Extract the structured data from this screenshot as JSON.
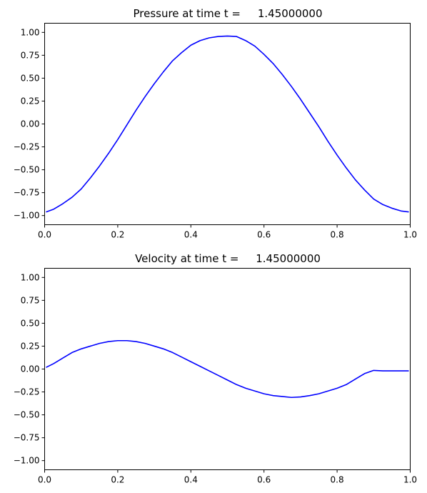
{
  "chart_data": [
    {
      "type": "line",
      "title": "Pressure at time t =     1.45000000",
      "xlabel": "",
      "ylabel": "",
      "xlim": [
        0.0,
        1.0
      ],
      "ylim": [
        -1.1,
        1.1
      ],
      "xticks": [
        0.0,
        0.2,
        0.4,
        0.6,
        0.8,
        1.0
      ],
      "xtick_labels": [
        "0.0",
        "0.2",
        "0.4",
        "0.6",
        "0.8",
        "1.0"
      ],
      "yticks": [
        1.0,
        0.75,
        0.5,
        0.25,
        0.0,
        -0.25,
        -0.5,
        -0.75,
        -1.0
      ],
      "ytick_labels": [
        "1.00",
        "0.75",
        "0.50",
        "0.25",
        "0.00",
        "−0.25",
        "−0.50",
        "−0.75",
        "−1.00"
      ],
      "grid": false,
      "color": "#0000ff",
      "series": [
        {
          "x": [
            0.005,
            0.025,
            0.05,
            0.075,
            0.1,
            0.125,
            0.15,
            0.175,
            0.2,
            0.225,
            0.25,
            0.275,
            0.3,
            0.325,
            0.35,
            0.375,
            0.4,
            0.425,
            0.45,
            0.475,
            0.5,
            0.525,
            0.55,
            0.575,
            0.6,
            0.625,
            0.65,
            0.675,
            0.7,
            0.725,
            0.75,
            0.775,
            0.8,
            0.825,
            0.85,
            0.875,
            0.9,
            0.925,
            0.95,
            0.975,
            0.995
          ],
          "values": [
            -0.96,
            -0.93,
            -0.87,
            -0.8,
            -0.71,
            -0.59,
            -0.46,
            -0.32,
            -0.17,
            -0.01,
            0.15,
            0.3,
            0.44,
            0.57,
            0.69,
            0.78,
            0.86,
            0.91,
            0.94,
            0.955,
            0.96,
            0.955,
            0.91,
            0.85,
            0.76,
            0.66,
            0.54,
            0.41,
            0.27,
            0.12,
            -0.03,
            -0.19,
            -0.34,
            -0.48,
            -0.61,
            -0.72,
            -0.82,
            -0.88,
            -0.92,
            -0.95,
            -0.96
          ]
        }
      ]
    },
    {
      "type": "line",
      "title": "Velocity at time t =     1.45000000",
      "xlabel": "",
      "ylabel": "",
      "xlim": [
        0.0,
        1.0
      ],
      "ylim": [
        -1.1,
        1.1
      ],
      "xticks": [
        0.0,
        0.2,
        0.4,
        0.6,
        0.8,
        1.0
      ],
      "xtick_labels": [
        "0.0",
        "0.2",
        "0.4",
        "0.6",
        "0.8",
        "1.0"
      ],
      "yticks": [
        1.0,
        0.75,
        0.5,
        0.25,
        0.0,
        -0.25,
        -0.5,
        -0.75,
        -1.0
      ],
      "ytick_labels": [
        "1.00",
        "0.75",
        "0.50",
        "0.25",
        "0.00",
        "−0.25",
        "−0.50",
        "−0.75",
        "−1.00"
      ],
      "grid": false,
      "color": "#0000ff",
      "series": [
        {
          "x": [
            0.005,
            0.025,
            0.05,
            0.075,
            0.1,
            0.125,
            0.15,
            0.175,
            0.2,
            0.225,
            0.25,
            0.275,
            0.3,
            0.325,
            0.35,
            0.375,
            0.4,
            0.425,
            0.45,
            0.475,
            0.5,
            0.525,
            0.55,
            0.575,
            0.6,
            0.625,
            0.65,
            0.675,
            0.7,
            0.725,
            0.75,
            0.775,
            0.8,
            0.825,
            0.85,
            0.875,
            0.9,
            0.925,
            0.95,
            0.975,
            0.995
          ],
          "values": [
            0.02,
            0.06,
            0.12,
            0.18,
            0.22,
            0.25,
            0.28,
            0.3,
            0.31,
            0.31,
            0.3,
            0.28,
            0.25,
            0.22,
            0.18,
            0.13,
            0.08,
            0.03,
            -0.02,
            -0.07,
            -0.12,
            -0.17,
            -0.21,
            -0.24,
            -0.27,
            -0.29,
            -0.3,
            -0.31,
            -0.305,
            -0.29,
            -0.27,
            -0.24,
            -0.21,
            -0.17,
            -0.11,
            -0.05,
            -0.015,
            -0.02,
            -0.02,
            -0.02,
            -0.02
          ]
        }
      ]
    }
  ]
}
